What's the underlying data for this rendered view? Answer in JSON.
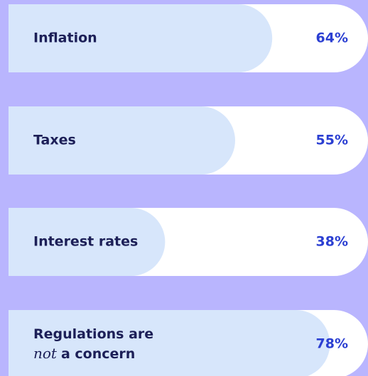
{
  "chart_data": {
    "type": "bar",
    "categories": [
      "Inflation",
      "Taxes",
      "Interest rates",
      [
        "Regulations are",
        "not",
        "a concern"
      ]
    ],
    "italic": [
      null,
      null,
      null,
      1
    ],
    "values": [
      64,
      55,
      38,
      78
    ],
    "value_labels": [
      "64%",
      "55%",
      "38%",
      "78%"
    ],
    "color": "#d7e6fb"
  }
}
